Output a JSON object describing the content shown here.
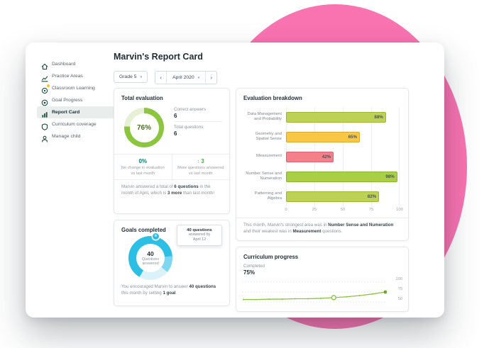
{
  "colors": {
    "accent_pink": "#f973b1",
    "brand_green": "#8cc63f",
    "gauge_cyan": "#2cbfe6",
    "stat_positive_green": "#4caf50",
    "stat_neutral_teal": "#0b7a6b"
  },
  "icons": {
    "caret": "▾",
    "prev": "‹",
    "next": "›",
    "up_arrow": "↑",
    "star": "★"
  },
  "sidebar": {
    "items": [
      {
        "label": "Dashboard"
      },
      {
        "label": "Practice Areas"
      },
      {
        "label": "Classroom Learning"
      },
      {
        "label": "Goal Progress"
      },
      {
        "label": "Report Card"
      },
      {
        "label": "Curriculum coverage"
      },
      {
        "label": "Manage child"
      }
    ]
  },
  "header": {
    "title": "Marvin's Report Card",
    "grade_select": "Grade 5",
    "month_select": "April 2020"
  },
  "total_evaluation": {
    "title": "Total evaluation",
    "percent": "76%",
    "correct_label": "Correct answers",
    "correct_value": "6",
    "total_label": "Total questions",
    "total_value": "6",
    "stat1_value": "0%",
    "stat1_text": "No change in evaluation vs last month",
    "stat2_value": "3",
    "stat2_text": "More questions answered vs last month",
    "footer_pre": "Marvin answered a total of ",
    "footer_bold1": "6 questions",
    "footer_mid": " in the month of April, which is ",
    "footer_bold2": "3 more",
    "footer_post": " than last month!"
  },
  "goals": {
    "title": "Goals completed",
    "tooltip_line1": "40 questions",
    "tooltip_line2": "answered by",
    "tooltip_line3": "April 12",
    "center_value": "40",
    "center_label": "Questions answered",
    "footer_pre": "You encouraged Marvin to answer ",
    "footer_bold1": "40 questions",
    "footer_mid": " this month by setting ",
    "footer_bold2": "1 goal",
    "footer_post": "."
  },
  "breakdown": {
    "title": "Evaluation breakdown",
    "footer_pre": "This month, Marvin's strongest area was in ",
    "footer_bold1": "Number Sense and Numeration",
    "footer_mid": " and their weakest was in ",
    "footer_bold2": "Measurement",
    "footer_post": " questions."
  },
  "curriculum": {
    "title": "Curriculum progress",
    "completed_label": "Completed",
    "completed_value": "75%"
  },
  "chart_data": [
    {
      "type": "bar",
      "title": "Evaluation breakdown",
      "orientation": "horizontal",
      "categories": [
        "Data Management and Probability",
        "Geometry and Spatial Sense",
        "Measurement",
        "Number Sense and Numeration",
        "Patterning and Algebra"
      ],
      "values": [
        88,
        65,
        42,
        98,
        82
      ],
      "labels": [
        "88%",
        "65%",
        "42%",
        "98%",
        "82%"
      ],
      "colors": [
        "#bdd154",
        "#f8c845",
        "#f4808a",
        "#a8cf45",
        "#bdd154"
      ],
      "border_colors": [
        "#9db733",
        "#d9a92e",
        "#d9646f",
        "#8bb52c",
        "#9db733"
      ],
      "xticks": [
        "0",
        "25",
        "50",
        "75",
        "100"
      ],
      "xlim": [
        0,
        100
      ],
      "grid": true
    },
    {
      "type": "line",
      "title": "Curriculum progress",
      "values": [
        56,
        56,
        57,
        57,
        58,
        58,
        59,
        61,
        63,
        66,
        70,
        75
      ],
      "yticks": [
        "100",
        "75",
        "50"
      ],
      "ylim": [
        50,
        100
      ],
      "highlight_index": 7,
      "line_color": "#8cc63f",
      "grid": true,
      "legend": "none"
    }
  ]
}
